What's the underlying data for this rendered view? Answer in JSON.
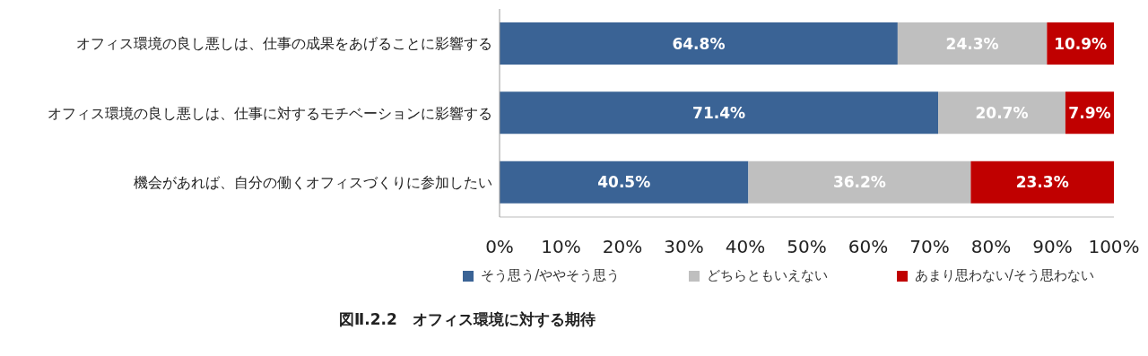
{
  "chart_data": {
    "type": "bar",
    "orientation": "horizontal",
    "stacked": true,
    "title": "図Ⅱ.2.2　オフィス環境に対する期待",
    "categories": [
      "オフィス環境の良し悪しは、仕事の成果をあげることに影響する",
      "オフィス環境の良し悪しは、仕事に対するモチベーションに影響する",
      "機会があれば、自分の働くオフィスづくりに参加したい"
    ],
    "series": [
      {
        "name": "そう思う/ややそう思う",
        "color": "#3a6395",
        "values": [
          64.8,
          71.4,
          40.5
        ],
        "value_labels": [
          "64.8%",
          "71.4%",
          "40.5%"
        ]
      },
      {
        "name": "どちらともいえない",
        "color": "#bfbfbf",
        "values": [
          24.3,
          20.7,
          36.2
        ],
        "value_labels": [
          "24.3%",
          "20.7%",
          "36.2%"
        ]
      },
      {
        "name": "あまり思わない/そう思わない",
        "color": "#c00000",
        "values": [
          10.9,
          7.9,
          23.3
        ],
        "value_labels": [
          "10.9%",
          "7.9%",
          "23.3%"
        ]
      }
    ],
    "xlim": [
      0,
      100
    ],
    "xticks": [
      {
        "value": 0,
        "label": "0%"
      },
      {
        "value": 10,
        "label": "10%"
      },
      {
        "value": 20,
        "label": "20%"
      },
      {
        "value": 30,
        "label": "30%"
      },
      {
        "value": 40,
        "label": "40%"
      },
      {
        "value": 50,
        "label": "50%"
      },
      {
        "value": 60,
        "label": "60%"
      },
      {
        "value": 70,
        "label": "70%"
      },
      {
        "value": 80,
        "label": "80%"
      },
      {
        "value": 90,
        "label": "90%"
      },
      {
        "value": 100,
        "label": "100%"
      }
    ],
    "legend": "bottom"
  }
}
